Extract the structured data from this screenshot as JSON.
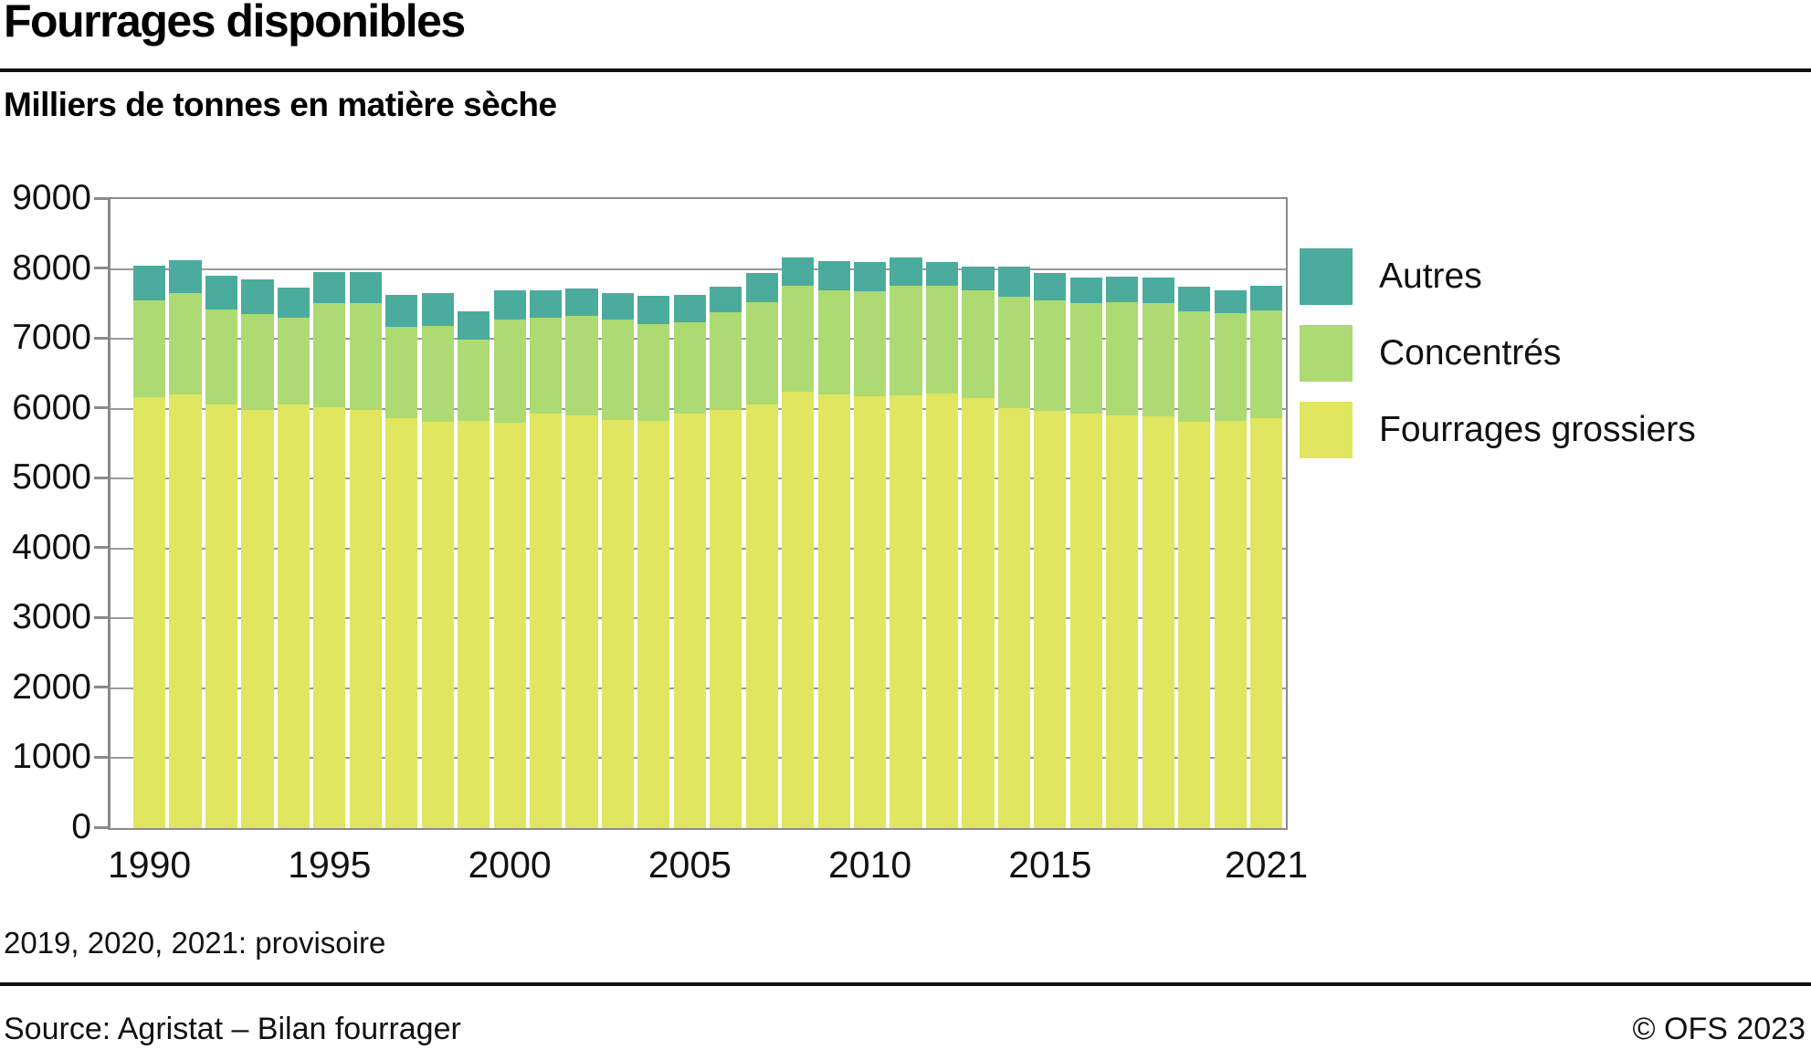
{
  "header": {
    "title": "Fourrages disponibles",
    "subtitle": "Milliers de tonnes en matière sèche"
  },
  "chart_data": {
    "type": "bar",
    "stacked": true,
    "title": "Fourrages disponibles",
    "unit_label": "Milliers de tonnes en matière sèche",
    "categories": [
      "1990",
      "1991",
      "1992",
      "1993",
      "1994",
      "1995",
      "1996",
      "1997",
      "1998",
      "1999",
      "2000",
      "2001",
      "2002",
      "2003",
      "2004",
      "2005",
      "2006",
      "2007",
      "2008",
      "2009",
      "2010",
      "2011",
      "2012",
      "2013",
      "2014",
      "2015",
      "2016",
      "2017",
      "2018",
      "2019",
      "2020",
      "2021"
    ],
    "series": [
      {
        "name": "Fourrages grossiers",
        "color": "#E0E65F",
        "values": [
          6160,
          6210,
          6060,
          5985,
          6060,
          6020,
          5980,
          5865,
          5815,
          5830,
          5800,
          5925,
          5900,
          5845,
          5820,
          5925,
          5985,
          6055,
          6245,
          6210,
          6175,
          6190,
          6220,
          6155,
          6005,
          5970,
          5925,
          5910,
          5895,
          5810,
          5820,
          5860
        ]
      },
      {
        "name": "Concentrés",
        "color": "#ADDA73",
        "values": [
          1390,
          1450,
          1355,
          1375,
          1240,
          1490,
          1525,
          1305,
          1375,
          1165,
          1470,
          1375,
          1425,
          1425,
          1385,
          1315,
          1395,
          1475,
          1515,
          1490,
          1510,
          1570,
          1535,
          1545,
          1600,
          1580,
          1580,
          1610,
          1610,
          1580,
          1545,
          1550
        ]
      },
      {
        "name": "Autres",
        "color": "#4BAC9E",
        "values": [
          500,
          470,
          490,
          485,
          435,
          445,
          455,
          455,
          460,
          400,
          425,
          390,
          390,
          390,
          410,
          390,
          365,
          410,
          400,
          410,
          420,
          400,
          345,
          340,
          435,
          390,
          370,
          375,
          370,
          355,
          335,
          345
        ]
      }
    ],
    "legend_order_top_to_bottom": [
      "Autres",
      "Concentrés",
      "Fourrages grossiers"
    ],
    "legend_position": "right",
    "ylim": [
      0,
      9000
    ],
    "ytick_step": 1000,
    "ytick_labels": [
      "0",
      "1000",
      "2000",
      "3000",
      "4000",
      "5000",
      "6000",
      "7000",
      "8000",
      "9000"
    ],
    "xtick_labels": [
      "1990",
      "1995",
      "2000",
      "2005",
      "2010",
      "2015",
      "2021"
    ],
    "grid": "horizontal gridlines behind bars",
    "axis_color": "#8a8a8a"
  },
  "footnote": "2019, 2020, 2021: provisoire",
  "footer": {
    "source": "Source: Agristat – Bilan fourrager",
    "copyright": "© OFS 2023"
  }
}
